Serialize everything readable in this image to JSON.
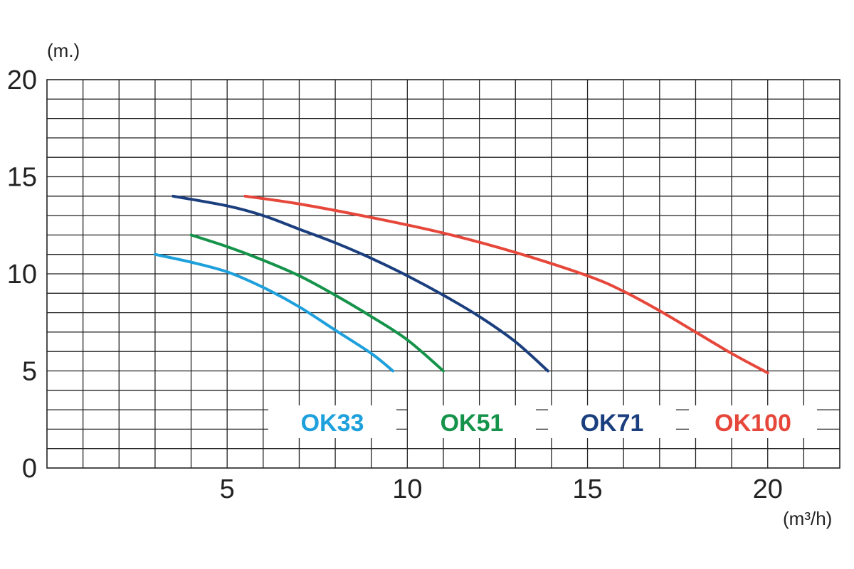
{
  "chart_data": {
    "type": "line",
    "title": "",
    "xlabel": "(m³/h)",
    "ylabel": "(m.)",
    "xlim": [
      0,
      22
    ],
    "ylim": [
      0,
      20
    ],
    "xticks": [
      "5",
      "10",
      "15",
      "20"
    ],
    "yticks": [
      "0",
      "5",
      "10",
      "15",
      "20"
    ],
    "grid": true,
    "legend_position": "bottom-inside",
    "series": [
      {
        "name": "OK33",
        "color": "#1ea0dc",
        "points": [
          [
            3,
            11
          ],
          [
            4,
            10.6
          ],
          [
            5,
            10.1
          ],
          [
            6,
            9.3
          ],
          [
            7,
            8.3
          ],
          [
            8,
            7.1
          ],
          [
            9,
            5.9
          ],
          [
            9.6,
            5
          ]
        ]
      },
      {
        "name": "OK51",
        "color": "#15934a",
        "points": [
          [
            4,
            12
          ],
          [
            5,
            11.4
          ],
          [
            6,
            10.7
          ],
          [
            7,
            9.9
          ],
          [
            8,
            8.9
          ],
          [
            9,
            7.8
          ],
          [
            10,
            6.6
          ],
          [
            11,
            5
          ]
        ]
      },
      {
        "name": "OK71",
        "color": "#1b3f7e",
        "points": [
          [
            3.5,
            14
          ],
          [
            5,
            13.5
          ],
          [
            6,
            13
          ],
          [
            7,
            12.3
          ],
          [
            8,
            11.6
          ],
          [
            9,
            10.8
          ],
          [
            10,
            9.9
          ],
          [
            11,
            8.9
          ],
          [
            12,
            7.8
          ],
          [
            13,
            6.5
          ],
          [
            13.9,
            5
          ]
        ]
      },
      {
        "name": "OK100",
        "color": "#e6473a",
        "points": [
          [
            5.5,
            14
          ],
          [
            7,
            13.6
          ],
          [
            9,
            12.9
          ],
          [
            11,
            12.1
          ],
          [
            13,
            11.1
          ],
          [
            15,
            9.9
          ],
          [
            16,
            9.1
          ],
          [
            17,
            8.1
          ],
          [
            18,
            7
          ],
          [
            19,
            5.9
          ],
          [
            20,
            4.9
          ]
        ]
      }
    ]
  }
}
